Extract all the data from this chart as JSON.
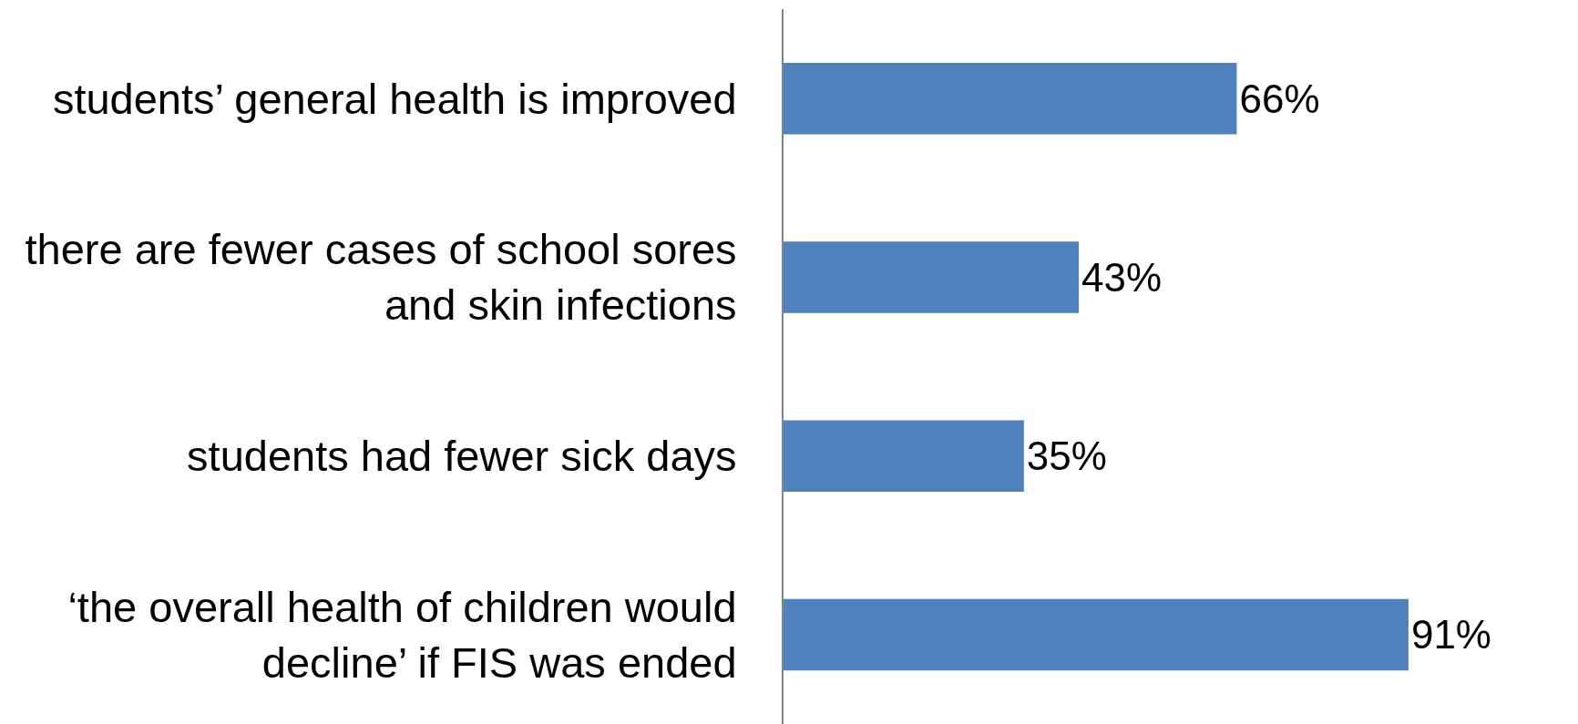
{
  "chart_data": {
    "type": "bar",
    "orientation": "horizontal",
    "categories": [
      "students’ general health is improved",
      "there are fewer cases of school sores\nand skin infections",
      "students had fewer sick days",
      "‘the overall health of children would\ndecline’ if FIS was ended"
    ],
    "values": [
      66,
      43,
      35,
      91
    ],
    "value_labels": [
      "66%",
      "43%",
      "35%",
      "91%"
    ],
    "color": "#4f81bd",
    "tick_labels": "y"
  }
}
